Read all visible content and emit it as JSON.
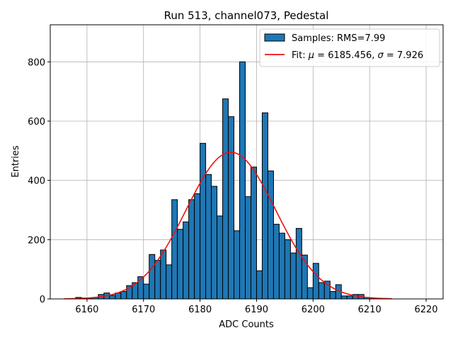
{
  "chart_data": {
    "type": "bar",
    "title": "Run 513, channel073, Pedestal",
    "xlabel": "ADC Counts",
    "ylabel": "Entries",
    "xlim": [
      6153.5,
      6223.0
    ],
    "ylim": [
      0,
      925
    ],
    "grid": true,
    "legend_position": "top-right",
    "x_ticks": [
      6160,
      6170,
      6180,
      6190,
      6200,
      6210,
      6220
    ],
    "y_ticks": [
      0,
      200,
      400,
      600,
      800
    ],
    "x_tick_labels": [
      "6160",
      "6170",
      "6180",
      "6190",
      "6200",
      "6210",
      "6220"
    ],
    "y_tick_labels": [
      "0",
      "200",
      "400",
      "600",
      "800"
    ],
    "histogram": {
      "bin_width": 1,
      "bin_starts": [
        6158,
        6159,
        6160,
        6161,
        6162,
        6163,
        6164,
        6165,
        6166,
        6167,
        6168,
        6169,
        6170,
        6171,
        6172,
        6173,
        6174,
        6175,
        6176,
        6177,
        6178,
        6179,
        6180,
        6181,
        6182,
        6183,
        6184,
        6185,
        6186,
        6187,
        6188,
        6189,
        6190,
        6191,
        6192,
        6193,
        6194,
        6195,
        6196,
        6197,
        6198,
        6199,
        6200,
        6201,
        6202,
        6203,
        6204,
        6205,
        6206,
        6207,
        6208,
        6209,
        6210
      ],
      "values": [
        5,
        3,
        3,
        5,
        15,
        20,
        12,
        20,
        25,
        45,
        55,
        75,
        50,
        150,
        130,
        165,
        115,
        335,
        235,
        260,
        335,
        355,
        525,
        420,
        380,
        280,
        675,
        615,
        230,
        800,
        345,
        445,
        95,
        628,
        432,
        252,
        222,
        200,
        155,
        238,
        148,
        38,
        120,
        55,
        60,
        25,
        48,
        10,
        10,
        15,
        15,
        5,
        3
      ],
      "color": "#1f77b4",
      "edge_color": "#000000"
    },
    "fit": {
      "mu": 6185.456,
      "sigma": 7.926,
      "peak": 495,
      "x_range": [
        6156,
        6214
      ],
      "color": "#ee1111"
    },
    "legend": {
      "samples_label": "Samples: RMS=7.99",
      "fit_label_prefix": "Fit: ",
      "fit_mu_symbol": "μ",
      "fit_mu_value": " = 6185.456, ",
      "fit_sigma_symbol": "σ",
      "fit_sigma_value": " = 7.926"
    }
  }
}
